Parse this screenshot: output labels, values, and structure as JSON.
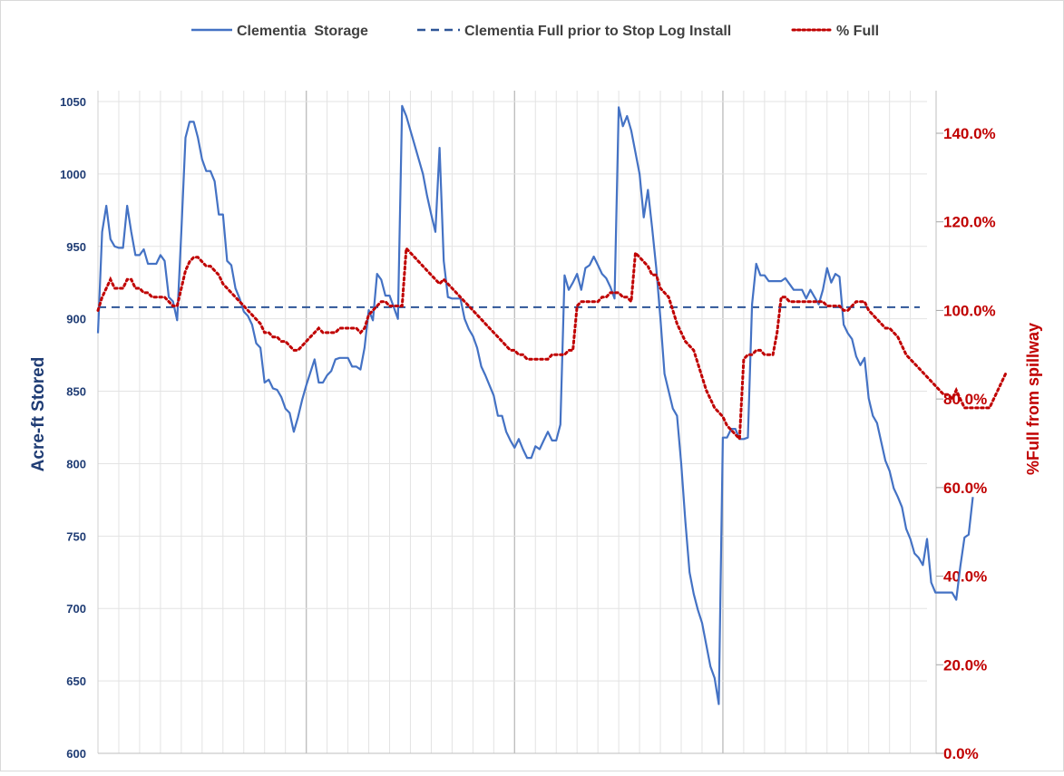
{
  "colors": {
    "storage": "#4472C4",
    "full_line": "#2E5597",
    "percent": "#C00000",
    "left_axis": "#1F3C74",
    "right_axis": "#C00000",
    "grid_major": "#BFBFBF",
    "grid_minor": "#E3E3E3"
  },
  "chart_data": {
    "type": "line",
    "title": "",
    "legend_position": "top",
    "grid": true,
    "legend": [
      {
        "name": "Clementia  Storage",
        "style": "solid"
      },
      {
        "name": "Clementia Full prior to Stop Log Install",
        "style": "dashed"
      },
      {
        "name": "% Full",
        "style": "dotted"
      }
    ],
    "y_left": {
      "label": "Acre-ft Stored",
      "min": 600,
      "max": 1050,
      "ticks": [
        "600",
        "650",
        "700",
        "750",
        "800",
        "850",
        "900",
        "950",
        "1000",
        "1050"
      ]
    },
    "y_right": {
      "label": "%Full from spillway",
      "min": 0,
      "max": 140,
      "ticks": [
        "0.0%",
        "20.0%",
        "40.0%",
        "60.0%",
        "80.0%",
        "100.0%",
        "120.0%",
        "140.0%"
      ]
    },
    "x": {
      "count": 200,
      "minor_every": 5,
      "major_every": 50
    },
    "full_line_value": 908,
    "series": [
      {
        "name": "Clementia  Storage",
        "values": [
          890,
          960,
          978,
          955,
          950,
          949,
          949,
          978,
          960,
          944,
          944,
          948,
          938,
          938,
          938,
          944,
          940,
          915,
          912,
          899,
          960,
          1025,
          1036,
          1036,
          1025,
          1010,
          1002,
          1002,
          995,
          972,
          972,
          940,
          937,
          921,
          914,
          905,
          902,
          896,
          883,
          880,
          856,
          858,
          852,
          851,
          846,
          838,
          835,
          822,
          832,
          844,
          854,
          863,
          872,
          856,
          856,
          861,
          864,
          872,
          873,
          873,
          873,
          867,
          867,
          865,
          880,
          906,
          899,
          931,
          927,
          916,
          916,
          908,
          900,
          1047,
          1040,
          1030,
          1020,
          1010,
          1000,
          985,
          972,
          960,
          1018,
          940,
          915,
          914,
          914,
          914,
          900,
          893,
          888,
          880,
          867,
          861,
          854,
          847,
          833,
          833,
          822,
          816,
          811,
          817,
          810,
          804,
          804,
          812,
          810,
          816,
          822,
          816,
          816,
          827,
          930,
          920,
          925,
          931,
          920,
          935,
          937,
          943,
          937,
          931,
          928,
          922,
          914,
          1046,
          1033,
          1040,
          1030,
          1015,
          1000,
          970,
          989,
          963,
          935,
          900,
          862,
          850,
          838,
          833,
          800,
          760,
          725,
          710,
          699,
          690,
          675,
          660,
          652,
          634,
          818,
          818,
          824,
          824,
          817,
          817,
          818,
          910,
          938,
          930,
          930,
          926,
          926,
          926,
          926,
          928,
          924,
          920,
          920,
          920,
          914,
          920,
          915,
          910,
          920,
          935,
          925,
          931,
          929,
          896,
          890,
          886,
          874,
          868,
          873,
          845,
          833,
          828,
          815,
          802,
          795,
          783,
          777,
          770,
          755,
          748,
          738,
          735,
          730,
          748,
          718,
          711,
          711,
          711,
          711,
          711,
          706,
          729,
          749,
          751,
          777
        ]
      },
      {
        "name": "% Full",
        "values": [
          100,
          103,
          105,
          107,
          105,
          105,
          105,
          107,
          107,
          105,
          105,
          104,
          104,
          103,
          103,
          103,
          103,
          102,
          101,
          101,
          105,
          109,
          111,
          112,
          112,
          111,
          110,
          110,
          109,
          108,
          106,
          105,
          104,
          103,
          102,
          101,
          100,
          99,
          98,
          97,
          95,
          95,
          94,
          94,
          93,
          93,
          92,
          91,
          91,
          92,
          93,
          94,
          95,
          96,
          95,
          95,
          95,
          95,
          96,
          96,
          96,
          96,
          96,
          95,
          96,
          99,
          100,
          101,
          102,
          102,
          101,
          101,
          101,
          101,
          114,
          113,
          112,
          111,
          110,
          109,
          108,
          107,
          106,
          107,
          106,
          105,
          104,
          103,
          102,
          101,
          100,
          99,
          98,
          97,
          96,
          95,
          94,
          93,
          92,
          91,
          91,
          90,
          90,
          89,
          89,
          89,
          89,
          89,
          89,
          90,
          90,
          90,
          90,
          91,
          91,
          101,
          102,
          102,
          102,
          102,
          102,
          103,
          103,
          104,
          104,
          104,
          103,
          103,
          102,
          113,
          112,
          111,
          110,
          108,
          108,
          105,
          104,
          103,
          100,
          97,
          95,
          93,
          92,
          91,
          88,
          85,
          82,
          80,
          78,
          77,
          76,
          74,
          73,
          72,
          71,
          89,
          90,
          90,
          91,
          91,
          90,
          90,
          90,
          95,
          103,
          103,
          102,
          102,
          102,
          102,
          102,
          102,
          102,
          102,
          102,
          101,
          101,
          101,
          101,
          100,
          100,
          101,
          102,
          102,
          102,
          100,
          99,
          98,
          97,
          96,
          96,
          95,
          94,
          92,
          90,
          89,
          88,
          87,
          86,
          85,
          84,
          83,
          82,
          81,
          81,
          80,
          82,
          80,
          78,
          78,
          78,
          78,
          78,
          78,
          78,
          80,
          82,
          84,
          86
        ]
      }
    ]
  }
}
